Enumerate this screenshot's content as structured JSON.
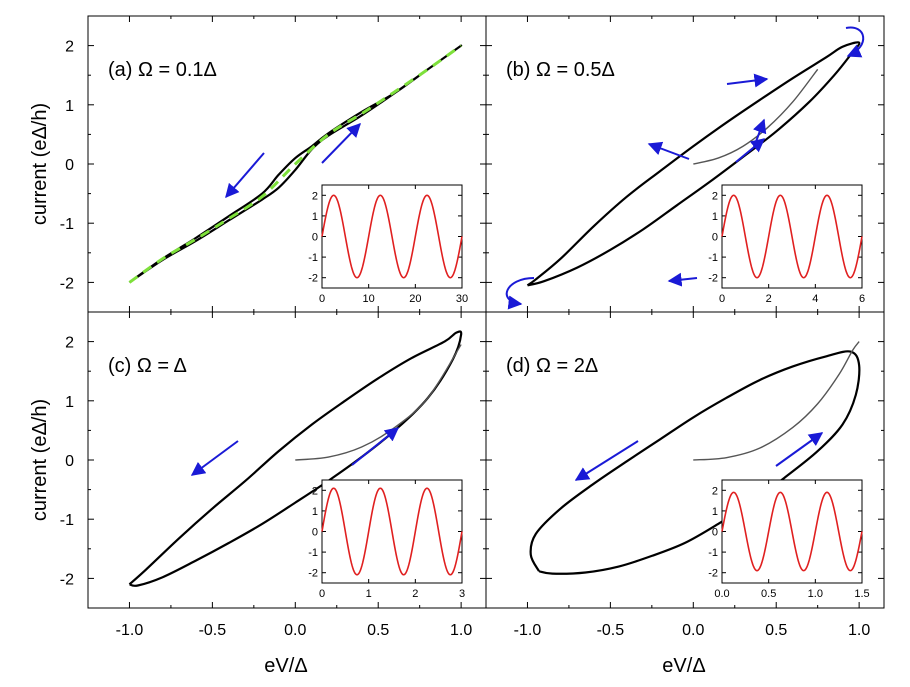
{
  "figure": {
    "xlabel": "eV/Δ",
    "ylabel": "current (eΔ/h)",
    "xlim": [
      -1.25,
      1.15
    ],
    "ylim": [
      -2.5,
      2.5
    ],
    "xticks": [
      -1.0,
      -0.5,
      0.0,
      0.5,
      1.0
    ],
    "xtick_labels": [
      "-1.0",
      "-0.5",
      "0.0",
      "0.5",
      "1.0"
    ],
    "yticks": [
      -2,
      -1,
      0,
      1,
      2
    ],
    "ytick_labels": [
      "-2",
      "-1",
      "0",
      "1",
      "2"
    ],
    "colors": {
      "loop": "#000000",
      "initial": "#555555",
      "adiabatic": "#7ee03b",
      "arrow": "#1a1ad6",
      "inset": "#e02020"
    }
  },
  "chart_data": [
    {
      "type": "line",
      "panel": "a",
      "title": "(a) Ω = 0.1Δ",
      "omega": 0.1,
      "loop_x": [
        -1.0,
        -0.8,
        -0.6,
        -0.4,
        -0.2,
        -0.1,
        0.0,
        0.1,
        0.2,
        0.4,
        0.6,
        0.8,
        1.0,
        0.8,
        0.6,
        0.4,
        0.2,
        0.1,
        0.0,
        -0.1,
        -0.2,
        -0.4,
        -0.6,
        -0.8,
        -1.0
      ],
      "loop_y": [
        -2.0,
        -1.62,
        -1.3,
        -0.95,
        -0.6,
        -0.4,
        -0.1,
        0.25,
        0.48,
        0.82,
        1.2,
        1.6,
        2.0,
        1.6,
        1.2,
        0.88,
        0.52,
        0.3,
        0.1,
        -0.18,
        -0.5,
        -0.88,
        -1.25,
        -1.6,
        -2.0
      ],
      "adiabatic_x": [
        -1.0,
        -0.8,
        -0.6,
        -0.4,
        -0.2,
        0.0,
        0.2,
        0.4,
        0.6,
        0.8,
        1.0
      ],
      "adiabatic_y": [
        -2.0,
        -1.6,
        -1.27,
        -0.92,
        -0.55,
        0.0,
        0.5,
        0.85,
        1.22,
        1.6,
        2.0
      ],
      "inset": {
        "xlim": [
          0,
          30
        ],
        "xticks": [
          0,
          10,
          20,
          30
        ],
        "xtick_labels": [
          "0",
          "10",
          "20",
          "30"
        ],
        "ylim": [
          -2.5,
          2.5
        ],
        "yticks": [
          -2,
          -1,
          0,
          1,
          2
        ],
        "ytick_labels": [
          "-2",
          "-1",
          "0",
          "1",
          "2"
        ],
        "amplitude": 2,
        "period": 10,
        "xmax": 30
      }
    },
    {
      "type": "line",
      "panel": "b",
      "title": "(b) Ω = 0.5Δ",
      "omega": 0.5,
      "loop_x": [
        -1.0,
        -0.9,
        -0.7,
        -0.5,
        -0.3,
        -0.1,
        0.1,
        0.3,
        0.5,
        0.7,
        0.85,
        0.95,
        1.0,
        0.9,
        0.8,
        0.6,
        0.4,
        0.2,
        0.0,
        -0.2,
        -0.4,
        -0.6,
        -0.8,
        -0.95,
        -1.0
      ],
      "loop_y": [
        -2.05,
        -1.98,
        -1.75,
        -1.45,
        -1.1,
        -0.7,
        -0.3,
        0.12,
        0.55,
        1.05,
        1.5,
        1.85,
        2.05,
        1.98,
        1.8,
        1.45,
        1.08,
        0.7,
        0.3,
        -0.12,
        -0.55,
        -1.05,
        -1.6,
        -1.95,
        -2.05
      ],
      "initial_x": [
        0.0,
        0.15,
        0.3,
        0.45,
        0.6,
        0.75
      ],
      "initial_y": [
        0.0,
        0.1,
        0.3,
        0.62,
        1.05,
        1.6
      ],
      "inset": {
        "xlim": [
          0,
          6
        ],
        "xticks": [
          0,
          2,
          4,
          6
        ],
        "xtick_labels": [
          "0",
          "2",
          "4",
          "6"
        ],
        "ylim": [
          -2.5,
          2.5
        ],
        "yticks": [
          -2,
          -1,
          0,
          1,
          2
        ],
        "ytick_labels": [
          "-2",
          "-1",
          "0",
          "1",
          "2"
        ],
        "amplitude": 2,
        "period": 2,
        "xmax": 6
      }
    },
    {
      "type": "line",
      "panel": "c",
      "title": "(c) Ω = Δ",
      "omega": 1.0,
      "loop_x": [
        -1.0,
        -0.95,
        -0.8,
        -0.6,
        -0.4,
        -0.2,
        0.0,
        0.2,
        0.4,
        0.6,
        0.8,
        0.95,
        1.0,
        0.97,
        0.9,
        0.7,
        0.5,
        0.3,
        0.1,
        -0.1,
        -0.3,
        -0.5,
        -0.7,
        -0.9,
        -1.0
      ],
      "loop_y": [
        -2.1,
        -2.12,
        -1.98,
        -1.7,
        -1.4,
        -1.08,
        -0.72,
        -0.35,
        0.05,
        0.5,
        1.05,
        1.7,
        2.12,
        2.15,
        2.0,
        1.72,
        1.38,
        1.0,
        0.6,
        0.15,
        -0.35,
        -0.82,
        -1.32,
        -1.85,
        -2.1
      ],
      "initial_x": [
        0.0,
        0.2,
        0.4,
        0.6,
        0.8,
        1.0
      ],
      "initial_y": [
        0.0,
        0.05,
        0.22,
        0.55,
        1.05,
        1.95
      ],
      "inset": {
        "xlim": [
          0,
          3
        ],
        "xticks": [
          0,
          1,
          2,
          3
        ],
        "xtick_labels": [
          "0",
          "1",
          "2",
          "3"
        ],
        "ylim": [
          -2.5,
          2.5
        ],
        "yticks": [
          -2,
          -1,
          0,
          1,
          2
        ],
        "ytick_labels": [
          "-2",
          "-1",
          "0",
          "1",
          "2"
        ],
        "amplitude": 2.1,
        "period": 1,
        "xmax": 3
      }
    },
    {
      "type": "line",
      "panel": "d",
      "title": "(d) Ω = 2Δ",
      "omega": 2.0,
      "loop_x": [
        -0.93,
        -0.98,
        -0.95,
        -0.8,
        -0.6,
        -0.4,
        -0.2,
        0.0,
        0.2,
        0.4,
        0.6,
        0.8,
        0.95,
        1.0,
        0.98,
        0.9,
        0.75,
        0.55,
        0.35,
        0.15,
        -0.05,
        -0.25,
        -0.45,
        -0.65,
        -0.85,
        -0.93
      ],
      "loop_y": [
        -1.88,
        -1.6,
        -1.25,
        -0.82,
        -0.4,
        -0.02,
        0.35,
        0.72,
        1.05,
        1.35,
        1.58,
        1.75,
        1.83,
        1.6,
        1.1,
        0.6,
        0.15,
        -0.3,
        -0.72,
        -1.08,
        -1.4,
        -1.62,
        -1.8,
        -1.9,
        -1.92,
        -1.88
      ],
      "initial_x": [
        0.0,
        0.2,
        0.4,
        0.6,
        0.75,
        0.88,
        0.96,
        1.0
      ],
      "initial_y": [
        0.0,
        0.04,
        0.2,
        0.55,
        0.95,
        1.45,
        1.85,
        2.0
      ],
      "inset": {
        "xlim": [
          0,
          1.5
        ],
        "xticks": [
          0,
          0.5,
          1.0,
          1.5
        ],
        "xtick_labels": [
          "0.0",
          "0.5",
          "1.0",
          "1.5"
        ],
        "ylim": [
          -2.5,
          2.5
        ],
        "yticks": [
          -2,
          -1,
          0,
          1,
          2
        ],
        "ytick_labels": [
          "-2",
          "-1",
          "0",
          "1",
          "2"
        ],
        "amplitude": 1.9,
        "period": 0.5,
        "xmax": 1.5
      }
    }
  ]
}
